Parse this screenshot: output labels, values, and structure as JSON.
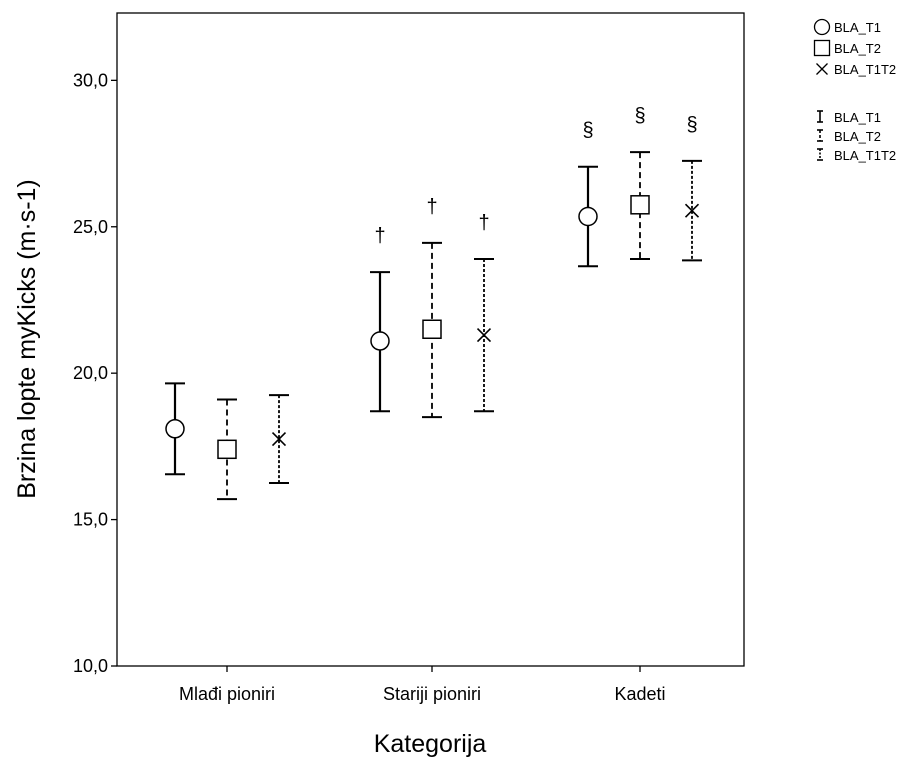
{
  "chart_data": {
    "type": "errorbar",
    "xlabel": "Kategorija",
    "ylabel": "Brzina lopte myKicks (m·s-1)",
    "ylim": [
      10,
      32.3
    ],
    "categories": [
      "Mlađi pioniri",
      "Stariji pioniri",
      "Kadeti"
    ],
    "y_ticks": [
      10,
      15,
      20,
      25,
      30
    ],
    "y_tick_labels": [
      "10,0",
      "15,0",
      "20,0",
      "25,0",
      "30,0"
    ],
    "grid": false,
    "legend_position": "top-right outside",
    "series": [
      {
        "name": "BLA_T1",
        "marker": "circle",
        "line_style": "solid",
        "means": [
          18.1,
          21.1,
          25.35
        ],
        "lower": [
          16.55,
          18.7,
          23.65
        ],
        "upper": [
          19.65,
          23.45,
          27.05
        ]
      },
      {
        "name": "BLA_T2",
        "marker": "square",
        "line_style": "dashed",
        "means": [
          17.4,
          21.5,
          25.75
        ],
        "lower": [
          15.7,
          18.5,
          23.9
        ],
        "upper": [
          19.1,
          24.45,
          27.55
        ]
      },
      {
        "name": "BLA_T1T2",
        "marker": "x",
        "line_style": "dotted-dashed",
        "means": [
          17.75,
          21.3,
          25.55
        ],
        "lower": [
          16.25,
          18.7,
          23.85
        ],
        "upper": [
          19.25,
          23.9,
          27.25
        ]
      }
    ],
    "annotations": [
      {
        "category": "Stariji pioniri",
        "series": "BLA_T1",
        "symbol": "†"
      },
      {
        "category": "Stariji pioniri",
        "series": "BLA_T2",
        "symbol": "†"
      },
      {
        "category": "Stariji pioniri",
        "series": "BLA_T1T2",
        "symbol": "†"
      },
      {
        "category": "Kadeti",
        "series": "BLA_T1",
        "symbol": "§"
      },
      {
        "category": "Kadeti",
        "series": "BLA_T2",
        "symbol": "§"
      },
      {
        "category": "Kadeti",
        "series": "BLA_T1T2",
        "symbol": "§"
      }
    ],
    "legend_markers": [
      "BLA_T1",
      "BLA_T2",
      "BLA_T1T2"
    ],
    "legend_errorbars": [
      "BLA_T1",
      "BLA_T2",
      "BLA_T1T2"
    ]
  }
}
